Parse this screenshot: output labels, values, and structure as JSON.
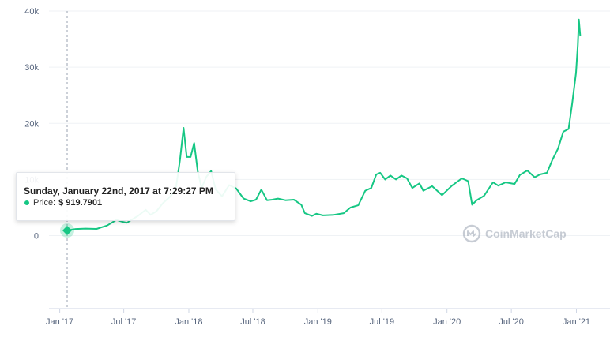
{
  "chart_data": {
    "type": "line",
    "series": [
      {
        "name": "Price",
        "x": [
          "2017-01-22",
          "2017-02-15",
          "2017-03-15",
          "2017-04-15",
          "2017-05-15",
          "2017-06-10",
          "2017-06-25",
          "2017-07-10",
          "2017-07-20",
          "2017-08-10",
          "2017-09-01",
          "2017-09-15",
          "2017-10-01",
          "2017-10-20",
          "2017-11-10",
          "2017-11-25",
          "2017-12-07",
          "2017-12-17",
          "2017-12-26",
          "2018-01-06",
          "2018-01-16",
          "2018-01-26",
          "2018-02-06",
          "2018-02-20",
          "2018-03-05",
          "2018-03-18",
          "2018-04-05",
          "2018-04-25",
          "2018-05-15",
          "2018-06-05",
          "2018-06-25",
          "2018-07-10",
          "2018-07-25",
          "2018-08-10",
          "2018-08-25",
          "2018-09-10",
          "2018-10-01",
          "2018-10-25",
          "2018-11-15",
          "2018-11-25",
          "2018-12-15",
          "2018-12-28",
          "2019-01-15",
          "2019-02-15",
          "2019-03-15",
          "2019-04-03",
          "2019-04-25",
          "2019-05-15",
          "2019-06-01",
          "2019-06-15",
          "2019-06-26",
          "2019-07-10",
          "2019-07-25",
          "2019-08-10",
          "2019-08-25",
          "2019-09-10",
          "2019-09-25",
          "2019-10-15",
          "2019-10-26",
          "2019-11-20",
          "2019-12-18",
          "2020-01-15",
          "2020-02-12",
          "2020-03-01",
          "2020-03-12",
          "2020-03-25",
          "2020-04-15",
          "2020-05-10",
          "2020-05-25",
          "2020-06-15",
          "2020-07-10",
          "2020-07-25",
          "2020-08-15",
          "2020-09-05",
          "2020-09-20",
          "2020-10-10",
          "2020-10-25",
          "2020-11-10",
          "2020-11-25",
          "2020-12-10",
          "2020-12-20",
          "2020-12-31",
          "2021-01-05",
          "2021-01-08",
          "2021-01-12"
        ],
        "y": [
          920,
          1180,
          1250,
          1200,
          1800,
          2800,
          2500,
          2300,
          2700,
          3500,
          4600,
          3700,
          4300,
          5800,
          7000,
          8200,
          13500,
          19200,
          14000,
          14000,
          16500,
          11500,
          8500,
          10500,
          11500,
          8200,
          7000,
          9000,
          8400,
          6600,
          6100,
          6400,
          8200,
          6300,
          6400,
          6600,
          6300,
          6400,
          5500,
          4000,
          3500,
          3900,
          3600,
          3700,
          4000,
          5000,
          5400,
          8000,
          8500,
          10900,
          11200,
          10000,
          10700,
          10000,
          10700,
          10200,
          8500,
          9300,
          8000,
          8800,
          7200,
          8900,
          10200,
          9700,
          5500,
          6300,
          7100,
          9500,
          8900,
          9500,
          9200,
          10800,
          11600,
          10400,
          10900,
          11200,
          13500,
          15500,
          18500,
          19000,
          23500,
          29000,
          34000,
          38500,
          35500
        ]
      }
    ],
    "xticks": [
      "Jan '17",
      "Jul '17",
      "Jan '18",
      "Jul '18",
      "Jan '19",
      "Jul '19",
      "Jan '20",
      "Jul '20",
      "Jan '21"
    ],
    "xtick_dates": [
      "2017-01-01",
      "2017-07-01",
      "2018-01-01",
      "2018-07-01",
      "2019-01-01",
      "2019-07-01",
      "2020-01-01",
      "2020-07-01",
      "2021-01-01"
    ],
    "yticks": [
      "0",
      "10k",
      "20k",
      "30k",
      "40k"
    ],
    "ytick_values": [
      0,
      10000,
      20000,
      30000,
      40000
    ],
    "ylim": [
      -13000,
      40000
    ],
    "xlim": [
      "2016-12-15",
      "2021-01-20"
    ],
    "grid": true,
    "colors": {
      "line": "#16c784",
      "marker": "#16c784"
    }
  },
  "tooltip": {
    "date": "Sunday, January 22nd, 2017 at 7:29:27 PM",
    "label": "Price:",
    "currency": "$",
    "value": "919.7901"
  },
  "watermark": {
    "text": "CoinMarketCap"
  }
}
